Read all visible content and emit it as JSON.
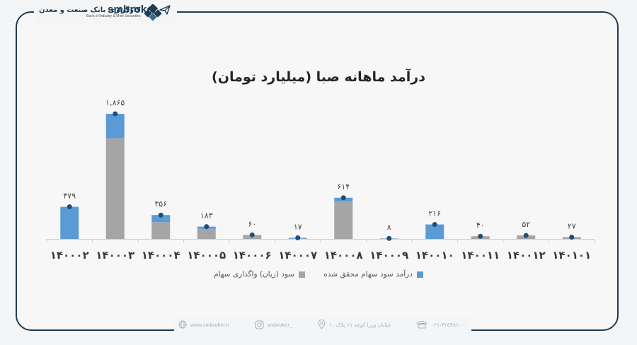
{
  "brand": {
    "bank_name": "کارگزاری بانک صنعت و معدن",
    "bank_name_en": "Bank of Industry & Mine Securities",
    "smbroker": "smbroker"
  },
  "footer": {
    "website": "www.smbroker.ir",
    "instagram": "smbroker_",
    "address": "خیابان وزرا کوچه ۱۱ پلاک ۱۰",
    "phone": "۰۲۱-۴۲۵۴۸۱۰۰۰"
  },
  "colors": {
    "realized": "#5b9bd5",
    "sale": "#a5a5a5",
    "marker": "#1f4e79"
  },
  "chart_data": {
    "type": "bar",
    "stacked": true,
    "title": "درآمد ماهانه صبا (میلیارد تومان)",
    "categories": [
      "۱۴۰۰۰۲",
      "۱۴۰۰۰۳",
      "۱۴۰۰۰۴",
      "۱۴۰۰۰۵",
      "۱۴۰۰۰۶",
      "۱۴۰۰۰۷",
      "۱۴۰۰۰۸",
      "۱۴۰۰۰۹",
      "۱۴۰۰۱۰",
      "۱۴۰۰۱۱",
      "۱۴۰۰۱۲",
      "۱۴۰۱۰۱"
    ],
    "series": [
      {
        "name": "سود (زیان) واگذاری سهام",
        "values": [
          0,
          1500,
          250,
          150,
          55,
          5,
          560,
          5,
          0,
          40,
          52,
          27
        ]
      },
      {
        "name": "درآمد سود سهام محقق شده",
        "values": [
          479,
          365,
          106,
          33,
          5,
          12,
          54,
          3,
          216,
          0,
          0,
          0
        ]
      }
    ],
    "totals": [
      479,
      1865,
      356,
      183,
      60,
      17,
      614,
      8,
      216,
      40,
      52,
      27
    ],
    "total_labels": [
      "۴۷۹",
      "۱,۸۶۵",
      "۳۵۶",
      "۱۸۳",
      "۶۰",
      "۱۷",
      "۶۱۴",
      "۸",
      "۲۱۶",
      "۴۰",
      "۵۲",
      "۲۷"
    ],
    "ylim": [
      0,
      1865
    ],
    "legend": "bottom"
  }
}
